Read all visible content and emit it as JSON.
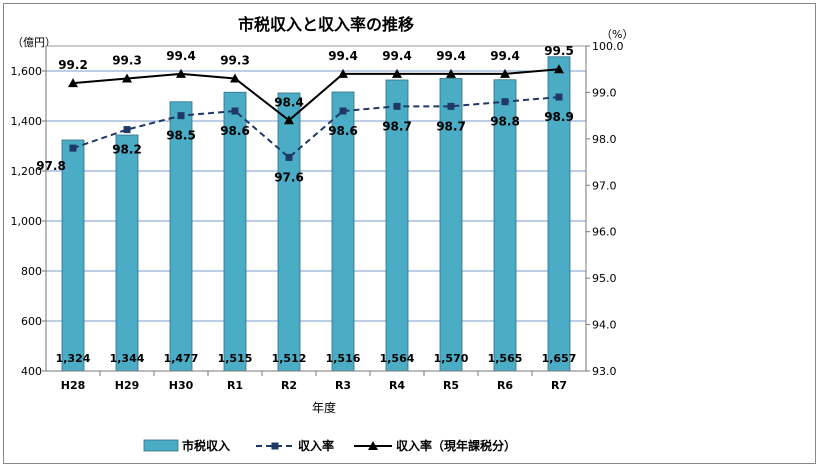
{
  "chart_data": {
    "type": "bar",
    "title": "市税収入と収入率の推移",
    "left_axis_unit": "（億円）",
    "right_axis_unit": "（%）",
    "xlabel": "年度",
    "categories": [
      "H28",
      "H29",
      "H30",
      "R1",
      "R2",
      "R3",
      "R4",
      "R5",
      "R6",
      "R7"
    ],
    "left_ylim": [
      400,
      1700
    ],
    "left_ticks": [
      400,
      600,
      800,
      1000,
      1200,
      1400,
      1600
    ],
    "right_ylim": [
      93.0,
      100.0
    ],
    "right_ticks": [
      93.0,
      94.0,
      95.0,
      96.0,
      97.0,
      98.0,
      99.0,
      100.0
    ],
    "grid": true,
    "legend_position": "bottom",
    "series": [
      {
        "name": "市税収入",
        "kind": "bar",
        "axis": "left",
        "color": "#4bacc6",
        "values": [
          1324,
          1344,
          1477,
          1515,
          1512,
          1516,
          1564,
          1570,
          1565,
          1657
        ],
        "labels": [
          "1,324",
          "1,344",
          "1,477",
          "1,515",
          "1,512",
          "1,516",
          "1,564",
          "1,570",
          "1,565",
          "1,657"
        ]
      },
      {
        "name": "収入率",
        "kind": "dashed-line-square",
        "axis": "right",
        "color": "#1f3864",
        "values": [
          97.8,
          98.2,
          98.5,
          98.6,
          97.6,
          98.6,
          98.7,
          98.7,
          98.8,
          98.9
        ],
        "labels": [
          "97.8",
          "98.2",
          "98.5",
          "98.6",
          "97.6",
          "98.6",
          "98.7",
          "98.7",
          "98.8",
          "98.9"
        ]
      },
      {
        "name": "収入率（現年課税分）",
        "kind": "solid-line-triangle",
        "axis": "right",
        "color": "#000000",
        "values": [
          99.2,
          99.3,
          99.4,
          99.3,
          98.4,
          99.4,
          99.4,
          99.4,
          99.4,
          99.5
        ],
        "labels": [
          "99.2",
          "99.3",
          "99.4",
          "99.3",
          "98.4",
          "99.4",
          "99.4",
          "99.4",
          "99.4",
          "99.5"
        ]
      }
    ]
  }
}
